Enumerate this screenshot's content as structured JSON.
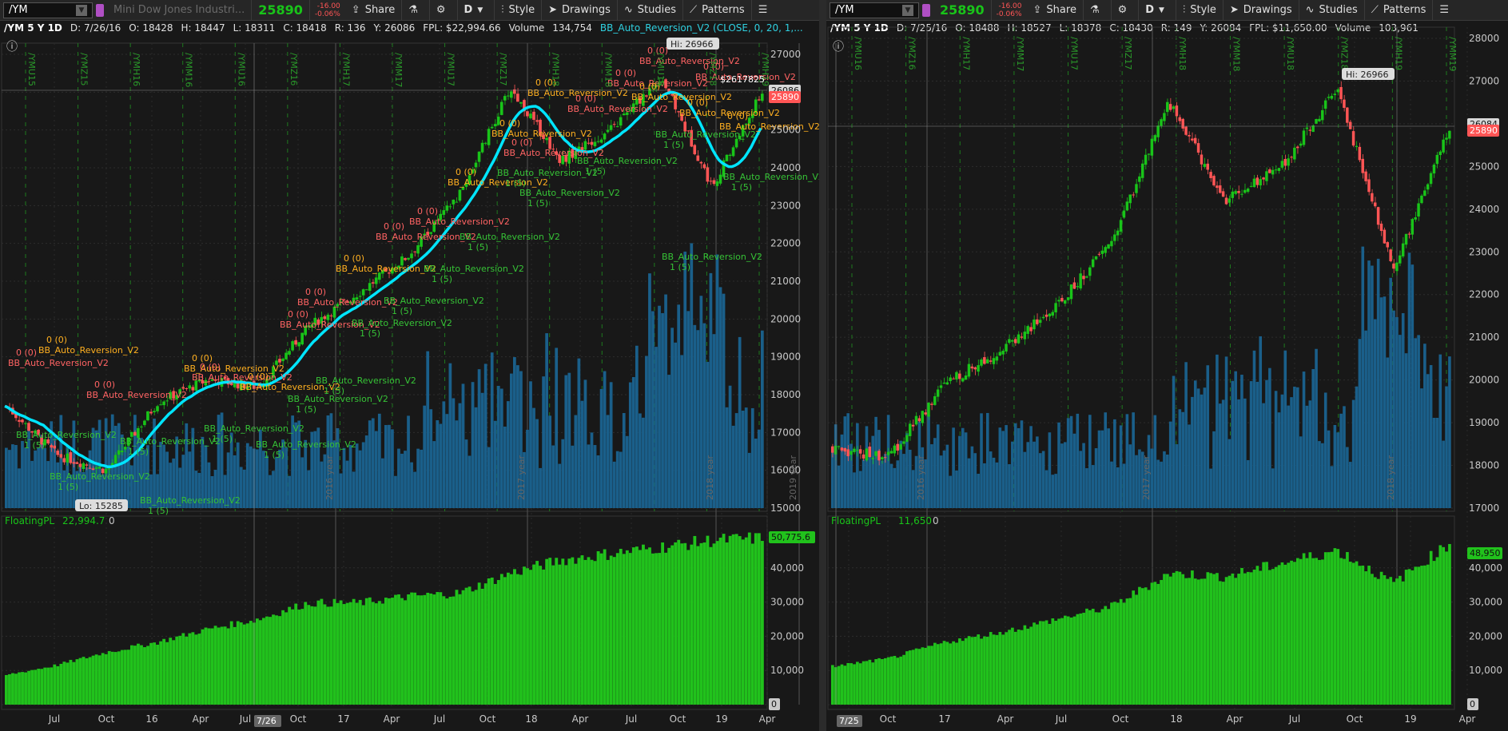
{
  "left": {
    "toolbar": {
      "symbol": "/YM",
      "description": "Mini Dow Jones Industri...",
      "last_price": "25890",
      "change": "-16.00",
      "change_pct": "-0.06%",
      "share": "Share",
      "period_btn": "D",
      "style": "Style",
      "drawings": "Drawings",
      "studies": "Studies",
      "patterns": "Patterns"
    },
    "infobar": {
      "symbol_period": "/YM 5 Y 1D",
      "date": "D: 7/26/16",
      "open": "O: 18428",
      "high": "H: 18447",
      "low": "L: 18311",
      "close": "C: 18418",
      "range": "R: 136",
      "y": "Y: 26086",
      "fpl": "FPL: $22,994.66",
      "volume_label": "Volume",
      "volume_value": "134,754",
      "study": "BB_Auto_Reversion_V2 (CLOSE, 0, 20, 1,..."
    },
    "price_axis": [
      "27000",
      "26000",
      "25000",
      "24000",
      "23000",
      "22000",
      "21000",
      "20000",
      "19000",
      "18000",
      "17000",
      "16000",
      "15000"
    ],
    "current_price_tag": "26086",
    "last_price_tag": "25890",
    "hi_label": "Hi: 26966",
    "lo_label": "Lo: 15285",
    "pl_label": "$2617825",
    "contract_labels": [
      "/YMU15",
      "/YMZ15",
      "/YMH16",
      "/YMM16",
      "/YMU16",
      "/YMZ16",
      "/YMH17",
      "/YMM17",
      "/YMU17",
      "/YMZ17",
      "/YMH18",
      "/YMM18",
      "/YMU18",
      "/YMZ18",
      "/YMH19"
    ],
    "year_labels": [
      "2016 year",
      "2017 year",
      "2018 year",
      "2019 year"
    ],
    "subpanel": {
      "study": "FloatingPL",
      "value": "22,994.7",
      "zero": "0",
      "axis": [
        "40,000",
        "30,000",
        "20,000",
        "10,000",
        "0"
      ],
      "last_tag": "50,775.6"
    },
    "time_axis": [
      "Jul",
      "Oct",
      "16",
      "Apr",
      "Jul",
      "7/26",
      "Oct",
      "17",
      "Apr",
      "Jul",
      "Oct",
      "18",
      "Apr",
      "Jul",
      "Oct",
      "19",
      "Apr"
    ],
    "signal_text_short": "BB_Auto_Reversion_V2",
    "signal_qty_up": "0 (0)",
    "signal_qty_dn": "1 (5)"
  },
  "right": {
    "toolbar": {
      "symbol": "/YM",
      "last_price": "25890",
      "change": "-16.00",
      "change_pct": "-0.06%",
      "share": "Share",
      "period_btn": "D",
      "style": "Style",
      "drawings": "Drawings",
      "studies": "Studies",
      "patterns": "Patterns"
    },
    "infobar": {
      "symbol_period": "/YM 5 Y 1D",
      "date": "D: 7/25/16",
      "open": "O: 18488",
      "high": "H: 18527",
      "low": "L: 18378",
      "close": "C: 18430",
      "range": "R: 149",
      "y": "Y: 26084",
      "fpl": "FPL: $11,650.00",
      "volume_label": "Volume",
      "volume_value": "103,961"
    },
    "price_axis": [
      "28000",
      "27000",
      "26000",
      "25000",
      "24000",
      "23000",
      "22000",
      "21000",
      "20000",
      "19000",
      "18000",
      "17000"
    ],
    "current_price_tag": "26084",
    "last_price_tag": "25890",
    "hi_label": "Hi: 26966",
    "contract_labels": [
      "/YMU16",
      "/YMZ16",
      "/YMH17",
      "/YMM17",
      "/YMU17",
      "/YMZ17",
      "/YMH18",
      "/YMM18",
      "/YMU18",
      "/YMZ18",
      "/YMH19",
      "/YMM19"
    ],
    "year_labels": [
      "2016 year",
      "2017 year",
      "2018 year"
    ],
    "subpanel": {
      "study": "FloatingPL",
      "value": "11,650",
      "zero": "0",
      "axis": [
        "40,000",
        "30,000",
        "20,000",
        "10,000",
        "0"
      ],
      "last_tag": "48,950"
    },
    "time_axis": [
      "7/25",
      "Oct",
      "17",
      "Apr",
      "Jul",
      "Oct",
      "18",
      "Apr",
      "Jul",
      "Oct",
      "19",
      "Apr"
    ]
  },
  "chart_data": [
    {
      "type": "line",
      "title": "/YM 5 Y 1D",
      "x": [
        "2015-07",
        "2015-10",
        "2016-01",
        "2016-04",
        "2016-07",
        "2016-10",
        "2017-01",
        "2017-04",
        "2017-07",
        "2017-10",
        "2018-01",
        "2018-04",
        "2018-07",
        "2018-10",
        "2019-01",
        "2019-03"
      ],
      "series": [
        {
          "name": "/YM",
          "values": [
            17700,
            16400,
            16000,
            17800,
            18400,
            18200,
            19800,
            20700,
            21700,
            23300,
            26100,
            24200,
            25000,
            26400,
            23500,
            26000
          ]
        }
      ],
      "ylim": [
        15000,
        27000
      ],
      "grid": true
    },
    {
      "type": "bar",
      "title": "FloatingPL",
      "x": [
        "2015-07",
        "2015-10",
        "2016-01",
        "2016-04",
        "2016-07",
        "2016-10",
        "2017-01",
        "2017-04",
        "2017-07",
        "2017-10",
        "2018-01",
        "2018-04",
        "2018-07",
        "2018-10",
        "2019-01",
        "2019-03"
      ],
      "values": [
        9000,
        12000,
        16000,
        19000,
        23000,
        26000,
        31000,
        31000,
        33000,
        34000,
        40000,
        44000,
        46000,
        48000,
        50000,
        50775.6
      ],
      "ylim": [
        0,
        50000
      ]
    },
    {
      "type": "line",
      "title": "/YM 5 Y 1D",
      "x": [
        "2016-07",
        "2016-10",
        "2017-01",
        "2017-04",
        "2017-07",
        "2017-10",
        "2018-01",
        "2018-04",
        "2018-07",
        "2018-10",
        "2019-01",
        "2019-03"
      ],
      "series": [
        {
          "name": "/YM",
          "values": [
            18400,
            18200,
            19900,
            20700,
            21700,
            23300,
            26500,
            24200,
            25000,
            26800,
            22600,
            25900
          ]
        }
      ],
      "ylim": [
        17000,
        28000
      ],
      "grid": true
    },
    {
      "type": "bar",
      "title": "FloatingPL",
      "x": [
        "2016-07",
        "2016-10",
        "2017-01",
        "2017-04",
        "2017-07",
        "2017-10",
        "2018-01",
        "2018-04",
        "2018-07",
        "2018-10",
        "2019-01",
        "2019-03"
      ],
      "values": [
        11650,
        14000,
        19000,
        22000,
        26000,
        30000,
        40000,
        39000,
        43000,
        47000,
        37000,
        48950
      ],
      "ylim": [
        0,
        50000
      ]
    }
  ],
  "colors": {
    "bg": "#181818",
    "up": "#19c419",
    "down": "#ff5555",
    "avg_line": "#00e5ff",
    "volume": "#1a5f8a",
    "pl_bar": "#21c21c",
    "grid": "#3a3a3a"
  }
}
